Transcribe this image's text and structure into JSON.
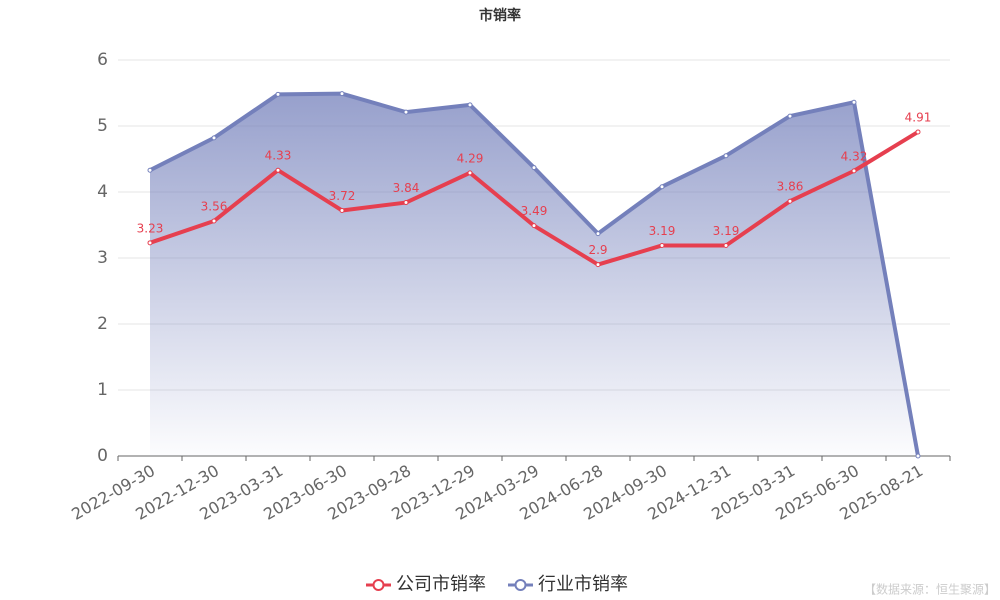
{
  "chart_data": {
    "type": "line",
    "title": "市销率",
    "categories": [
      "2022-09-30",
      "2022-12-30",
      "2023-03-31",
      "2023-06-30",
      "2023-09-28",
      "2023-12-29",
      "2024-03-29",
      "2024-06-28",
      "2024-09-30",
      "2024-12-31",
      "2025-03-31",
      "2025-06-30",
      "2025-08-21"
    ],
    "series": [
      {
        "name": "公司市销率",
        "color": "#e63f4f",
        "values": [
          3.23,
          3.56,
          4.33,
          3.72,
          3.84,
          4.29,
          3.49,
          2.9,
          3.19,
          3.19,
          3.86,
          4.32,
          4.91
        ]
      },
      {
        "name": "行业市销率",
        "color": "#7480bb",
        "values": [
          4.33,
          4.82,
          5.48,
          5.49,
          5.21,
          5.32,
          4.37,
          3.37,
          4.08,
          4.55,
          5.15,
          5.36,
          0
        ]
      }
    ],
    "ylim": [
      0,
      6
    ],
    "yticks": [
      0,
      1,
      2,
      3,
      4,
      5,
      6
    ],
    "grid": true,
    "source": "【数据来源：恒生聚源】"
  }
}
